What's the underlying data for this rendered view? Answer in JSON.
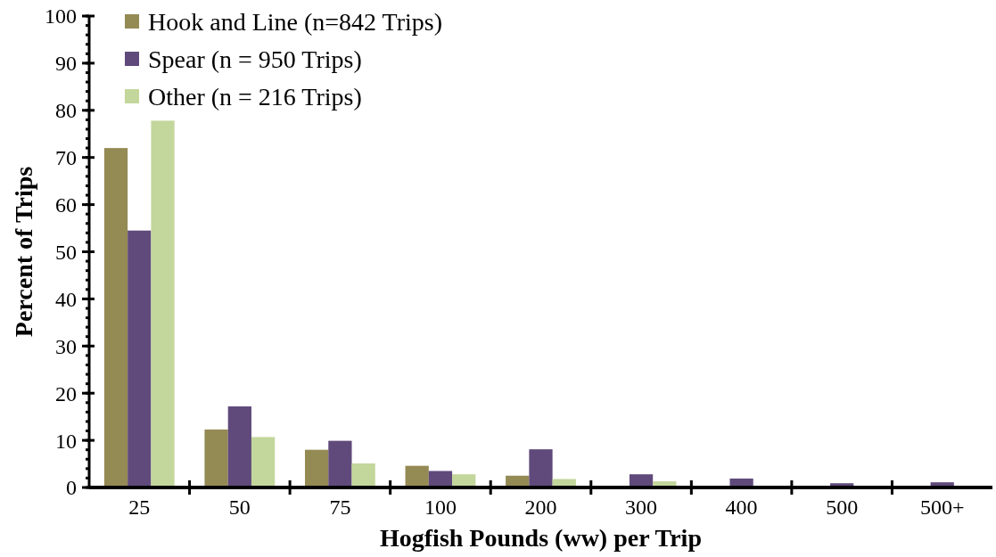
{
  "chart_data": {
    "type": "bar",
    "xlabel": "Hogfish Pounds (ww) per Trip",
    "ylabel": "Percent of Trips",
    "categories": [
      "25",
      "50",
      "75",
      "100",
      "200",
      "300",
      "400",
      "500",
      "500+"
    ],
    "series": [
      {
        "name": "Hook and Line (n=842 Trips)",
        "color": "#948a54",
        "values": [
          72,
          12.3,
          8,
          4.6,
          2.5,
          null,
          0,
          0,
          0
        ]
      },
      {
        "name": "Spear (n = 950 Trips)",
        "color": "#604a7b",
        "values": [
          54.5,
          17.2,
          9.9,
          3.5,
          8.1,
          2.8,
          1.9,
          0.9,
          1.1
        ]
      },
      {
        "name": "Other (n = 216 Trips)",
        "color": "#c3d69b",
        "values": [
          77.8,
          10.7,
          5.1,
          2.8,
          1.8,
          1.3,
          null,
          0,
          0
        ]
      }
    ],
    "ylim": [
      0,
      100
    ],
    "yticks": [
      0,
      10,
      20,
      30,
      40,
      50,
      60,
      70,
      80,
      90,
      100
    ],
    "grid": false,
    "legend": "top left"
  }
}
